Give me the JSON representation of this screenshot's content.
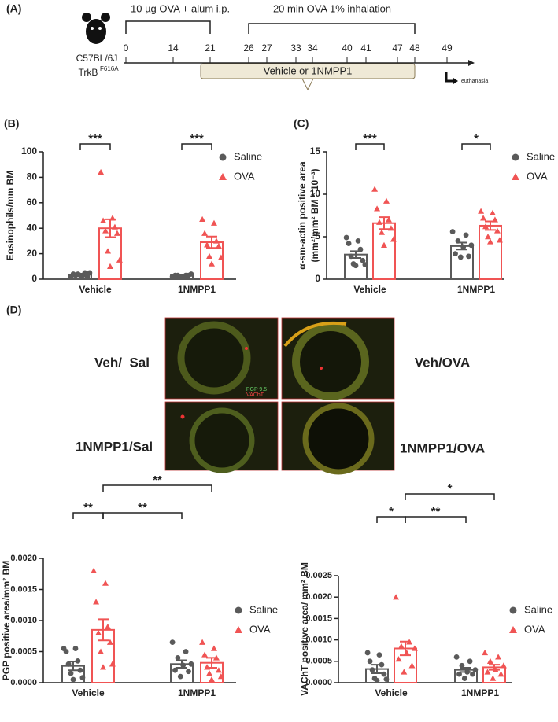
{
  "panel_a": {
    "label": "(A)",
    "strain": "C57BL/6J",
    "genotype": "TrkB",
    "genotype_sup": "F616A",
    "sensitization": "10 µg OVA + alum i.p.",
    "challenge": "20 min OVA 1% inhalation",
    "days": [
      0,
      14,
      21,
      26,
      27,
      33,
      34,
      40,
      41,
      47,
      48,
      49
    ],
    "treatment": "Vehicle or 1NMPP1",
    "endpoint": "euthanasia"
  },
  "panel_d": {
    "label": "(D)",
    "images": [
      {
        "label": "Veh/  Sal"
      },
      {
        "label": "Veh/OVA"
      },
      {
        "label": "1NMPP1/Sal"
      },
      {
        "label": "1NMPP1/OVA"
      }
    ],
    "stains": [
      "PGP 9.5",
      "VAChT"
    ]
  },
  "chart_data": [
    {
      "type": "bar",
      "panel": "(B)",
      "ylabel": [
        "Eosinophils/mm BM"
      ],
      "categories": [
        "Vehicle",
        "1NMPP1"
      ],
      "series": [
        {
          "name": "Saline",
          "color": "#5a5a5a",
          "marker": "circle",
          "values": [
            3.5,
            3
          ],
          "errors": [
            0.8,
            0.4
          ],
          "points": [
            [
              2,
              3,
              4,
              5,
              3,
              2,
              4,
              5,
              3
            ],
            [
              2,
              3,
              3,
              4,
              2,
              3,
              3,
              2
            ]
          ]
        },
        {
          "name": "OVA",
          "color": "#f05454",
          "marker": "triangle",
          "values": [
            40,
            29
          ],
          "errors": [
            7,
            4.5
          ],
          "points": [
            [
              84,
              48,
              46,
              41,
              38,
              36,
              22,
              15,
              10
            ],
            [
              47,
              44,
              36,
              30,
              27,
              26,
              18,
              17,
              12
            ]
          ]
        }
      ],
      "ylim": [
        0,
        100
      ],
      "yticks": [
        0,
        20,
        40,
        60,
        80,
        100
      ],
      "significance": [
        "***",
        "***"
      ]
    },
    {
      "type": "bar",
      "panel": "(C)",
      "ylabel": [
        "α-sm-actin positive area",
        "(mm²/mm² BM * 10⁻³)"
      ],
      "categories": [
        "Vehicle",
        "1NMPP1"
      ],
      "series": [
        {
          "name": "Saline",
          "color": "#5a5a5a",
          "marker": "circle",
          "values": [
            2.9,
            3.9
          ],
          "errors": [
            0.4,
            0.4
          ],
          "points": [
            [
              4.9,
              4.5,
              4.2,
              3.5,
              2.7,
              2.2,
              1.8,
              1.7,
              1.6
            ],
            [
              5.6,
              5.2,
              4.5,
              4.0,
              3.8,
              3.0,
              2.7,
              2.6
            ]
          ]
        },
        {
          "name": "OVA",
          "color": "#f05454",
          "marker": "triangle",
          "values": [
            6.6,
            6.3
          ],
          "errors": [
            0.7,
            0.5
          ],
          "points": [
            [
              10.6,
              9.2,
              8.3,
              7.0,
              6.7,
              6.0,
              5.5,
              4.7,
              4.0
            ],
            [
              8.0,
              7.8,
              7.2,
              7.0,
              6.2,
              5.7,
              5.0,
              4.6,
              4.4
            ]
          ]
        }
      ],
      "ylim": [
        0,
        15
      ],
      "yticks": [
        0,
        5,
        10,
        15
      ],
      "significance": [
        "***",
        "*"
      ]
    },
    {
      "type": "bar",
      "ylabel": [
        "PGP positive area/mm² BM"
      ],
      "categories": [
        "Vehicle",
        "1NMPP1"
      ],
      "series": [
        {
          "name": "Saline",
          "color": "#5a5a5a",
          "marker": "circle",
          "values": [
            0.00027,
            0.0003
          ],
          "errors": [
            7e-05,
            6e-05
          ],
          "points": [
            [
              0.00055,
              0.00055,
              0.0005,
              0.00035,
              0.0003,
              0.0002,
              0.00015,
              8e-05,
              5e-05
            ],
            [
              0.00065,
              0.0005,
              0.0004,
              0.0003,
              0.00028,
              0.0002,
              0.00018,
              0.0001
            ]
          ]
        },
        {
          "name": "OVA",
          "color": "#f05454",
          "marker": "triangle",
          "values": [
            0.00085,
            0.00032
          ],
          "errors": [
            0.00017,
            8e-05
          ],
          "points": [
            [
              0.0018,
              0.0016,
              0.0013,
              0.0009,
              0.0008,
              0.00065,
              0.0005,
              0.0003,
              0.00025
            ],
            [
              0.00065,
              0.00055,
              0.00045,
              0.0004,
              0.00025,
              0.0002,
              0.00015,
              0.0001,
              5e-05
            ]
          ]
        }
      ],
      "ylim": [
        0,
        0.002
      ],
      "yticks": [
        {
          "value": 0,
          "label": "0.0000"
        },
        {
          "value": 0.0005,
          "label": "0.0005"
        },
        {
          "value": 0.001,
          "label": "0.0010"
        },
        {
          "value": 0.0015,
          "label": "0.0015"
        },
        {
          "value": 0.002,
          "label": "0.0020"
        }
      ],
      "significance": [
        "**",
        "**",
        "**"
      ]
    },
    {
      "type": "bar",
      "ylabel": [
        "VAChT positive area/ mm² BM"
      ],
      "categories": [
        "Vehicle",
        "1NMPP1"
      ],
      "series": [
        {
          "name": "Saline",
          "color": "#5a5a5a",
          "marker": "circle",
          "values": [
            0.00032,
            0.0003
          ],
          "errors": [
            0.0001,
            5e-05
          ],
          "points": [
            [
              0.0007,
              0.00065,
              0.0005,
              0.00042,
              0.0003,
              0.0002,
              0.0001,
              8e-05,
              5e-05
            ],
            [
              0.0006,
              0.0005,
              0.0004,
              0.0003,
              0.00025,
              0.0002,
              0.0002,
              0.0001
            ]
          ]
        },
        {
          "name": "OVA",
          "color": "#f05454",
          "marker": "triangle",
          "values": [
            0.0008,
            0.00036
          ],
          "errors": [
            0.00016,
            6e-05
          ],
          "points": [
            [
              0.002,
              0.00095,
              0.00085,
              0.0008,
              0.0007,
              0.00055,
              0.0004,
              0.00025
            ],
            [
              0.0007,
              0.0006,
              0.0005,
              0.0004,
              0.0003,
              0.00025,
              0.0002,
              0.0001
            ]
          ]
        }
      ],
      "ylim": [
        0,
        0.0025
      ],
      "yticks": [
        {
          "value": 0,
          "label": "0.0000"
        },
        {
          "value": 0.0005,
          "label": "0.0005"
        },
        {
          "value": 0.001,
          "label": "0.0010"
        },
        {
          "value": 0.0015,
          "label": "0.0015"
        },
        {
          "value": 0.002,
          "label": "0.0020"
        },
        {
          "value": 0.0025,
          "label": "0.0025"
        }
      ],
      "significance": [
        "*",
        "**",
        "*"
      ]
    }
  ]
}
